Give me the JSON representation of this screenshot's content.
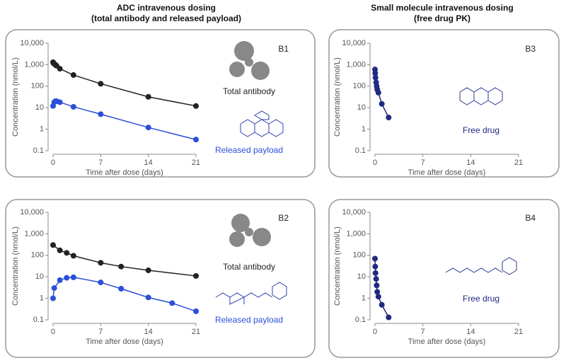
{
  "column_titles": [
    {
      "lines": [
        "ADC intravenous dosing",
        "(total antibody and released payload)"
      ]
    },
    {
      "lines": [
        "Small molecule intravenous dosing",
        "(free drug PK)"
      ]
    }
  ],
  "chart_data": [
    {
      "type": "line",
      "label": "B1",
      "x_label": "Time after dose (days)",
      "y_label": "Concentration (nmol/L)",
      "log_y": true,
      "grid": false,
      "xlim": [
        0,
        21
      ],
      "xticks": [
        0,
        7,
        14,
        21
      ],
      "ylim": [
        0.1,
        10000
      ],
      "yticks": [
        {
          "value": 10000,
          "label": "10,000"
        },
        {
          "value": 1000,
          "label": "1,000"
        },
        100,
        10,
        1,
        0.1
      ],
      "series": [
        {
          "name": "Total antibody",
          "color": "#222222",
          "x": [
            0,
            0.04,
            0.17,
            0.33,
            0.5,
            1,
            3,
            7,
            14,
            21
          ],
          "values": [
            1300,
            1200,
            1100,
            1000,
            900,
            650,
            330,
            130,
            32,
            12
          ]
        },
        {
          "name": "Released payload",
          "color": "#2b4fd8",
          "x": [
            0,
            0.17,
            0.33,
            0.5,
            1,
            3,
            7,
            14,
            21
          ],
          "values": [
            12,
            18,
            20,
            20,
            18,
            11,
            5,
            1.2,
            0.33
          ]
        }
      ]
    },
    {
      "type": "line",
      "label": "B2",
      "x_label": "Time after dose (days)",
      "y_label": "Concentration (nmol/L)",
      "log_y": true,
      "grid": false,
      "xlim": [
        0,
        21
      ],
      "xticks": [
        0,
        7,
        14,
        21
      ],
      "ylim": [
        0.1,
        10000
      ],
      "yticks": [
        {
          "value": 10000,
          "label": "10,000"
        },
        {
          "value": 1000,
          "label": "1,000"
        },
        100,
        10,
        1,
        0.1
      ],
      "series": [
        {
          "name": "Total antibody",
          "color": "#222222",
          "x": [
            0,
            1,
            2,
            3,
            7,
            10,
            14,
            21
          ],
          "values": [
            300,
            170,
            130,
            95,
            45,
            30,
            20,
            11
          ]
        },
        {
          "name": "Released payload",
          "color": "#2b4fd8",
          "x": [
            0,
            0.17,
            1,
            2,
            3,
            7,
            10,
            14,
            17.5,
            21
          ],
          "values": [
            1,
            3,
            7,
            9,
            9.5,
            5.5,
            2.8,
            1.1,
            0.6,
            0.25
          ]
        }
      ]
    },
    {
      "type": "line",
      "label": "B3",
      "x_label": "Time after dose (days)",
      "y_label": "Concentration (nmol/L)",
      "log_y": true,
      "grid": false,
      "xlim": [
        0,
        21
      ],
      "xticks": [
        0,
        7,
        14,
        21
      ],
      "ylim": [
        0.1,
        10000
      ],
      "yticks": [
        {
          "value": 10000,
          "label": "10,000"
        },
        {
          "value": 1000,
          "label": "1,000"
        },
        100,
        10,
        1,
        0.1
      ],
      "series": [
        {
          "name": "Free drug",
          "color": "#1f2a80",
          "x": [
            0,
            0.04,
            0.08,
            0.17,
            0.25,
            0.33,
            0.5,
            1,
            2
          ],
          "values": [
            600,
            400,
            250,
            150,
            100,
            70,
            50,
            15,
            3.5
          ]
        }
      ]
    },
    {
      "type": "line",
      "label": "B4",
      "x_label": "Time after dose (days)",
      "y_label": "Concentration (nmol/L)",
      "log_y": true,
      "grid": false,
      "xlim": [
        0,
        21
      ],
      "xticks": [
        0,
        7,
        14,
        21
      ],
      "ylim": [
        0.1,
        10000
      ],
      "yticks": [
        {
          "value": 10000,
          "label": "10,000"
        },
        {
          "value": 1000,
          "label": "1,000"
        },
        100,
        10,
        1,
        0.1
      ],
      "series": [
        {
          "name": "Free drug",
          "color": "#1f2a80",
          "x": [
            0,
            0.04,
            0.08,
            0.17,
            0.25,
            0.33,
            0.5,
            1,
            2
          ],
          "values": [
            70,
            30,
            15,
            8,
            4,
            2,
            1.2,
            0.5,
            0.13
          ]
        }
      ]
    }
  ]
}
